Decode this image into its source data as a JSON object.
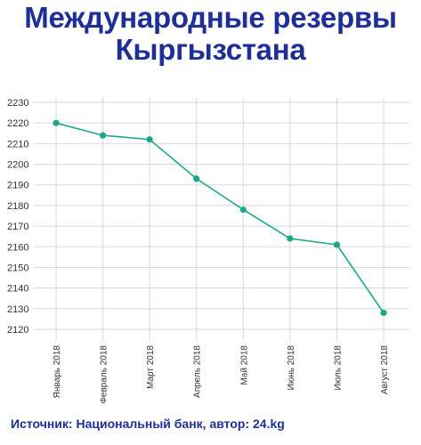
{
  "header": {
    "title_line1": "Международные резервы",
    "title_line2": "Кыргызстана"
  },
  "footer": {
    "source": "Источник: Национальный банк, автор: 24.kg"
  },
  "colors": {
    "title": "#1e2f97",
    "line": "#1aa88a",
    "grid": "#d9d9d9"
  },
  "chart_data": {
    "type": "line",
    "categories": [
      "Январь 2018",
      "Февраль 2018",
      "Март 2018",
      "Апрель 2018",
      "Май 2018",
      "Июнь 2018",
      "Июль 2018",
      "Август 2018"
    ],
    "series": [
      {
        "values": [
          2220,
          2214,
          2212,
          2193,
          2178,
          2164,
          2161,
          2128
        ]
      }
    ],
    "y_ticks": [
      2120,
      2130,
      2140,
      2150,
      2160,
      2170,
      2180,
      2190,
      2200,
      2210,
      2220,
      2230
    ],
    "ylim": [
      2120,
      2230
    ],
    "grid": true,
    "xlabel": "",
    "ylabel": ""
  }
}
